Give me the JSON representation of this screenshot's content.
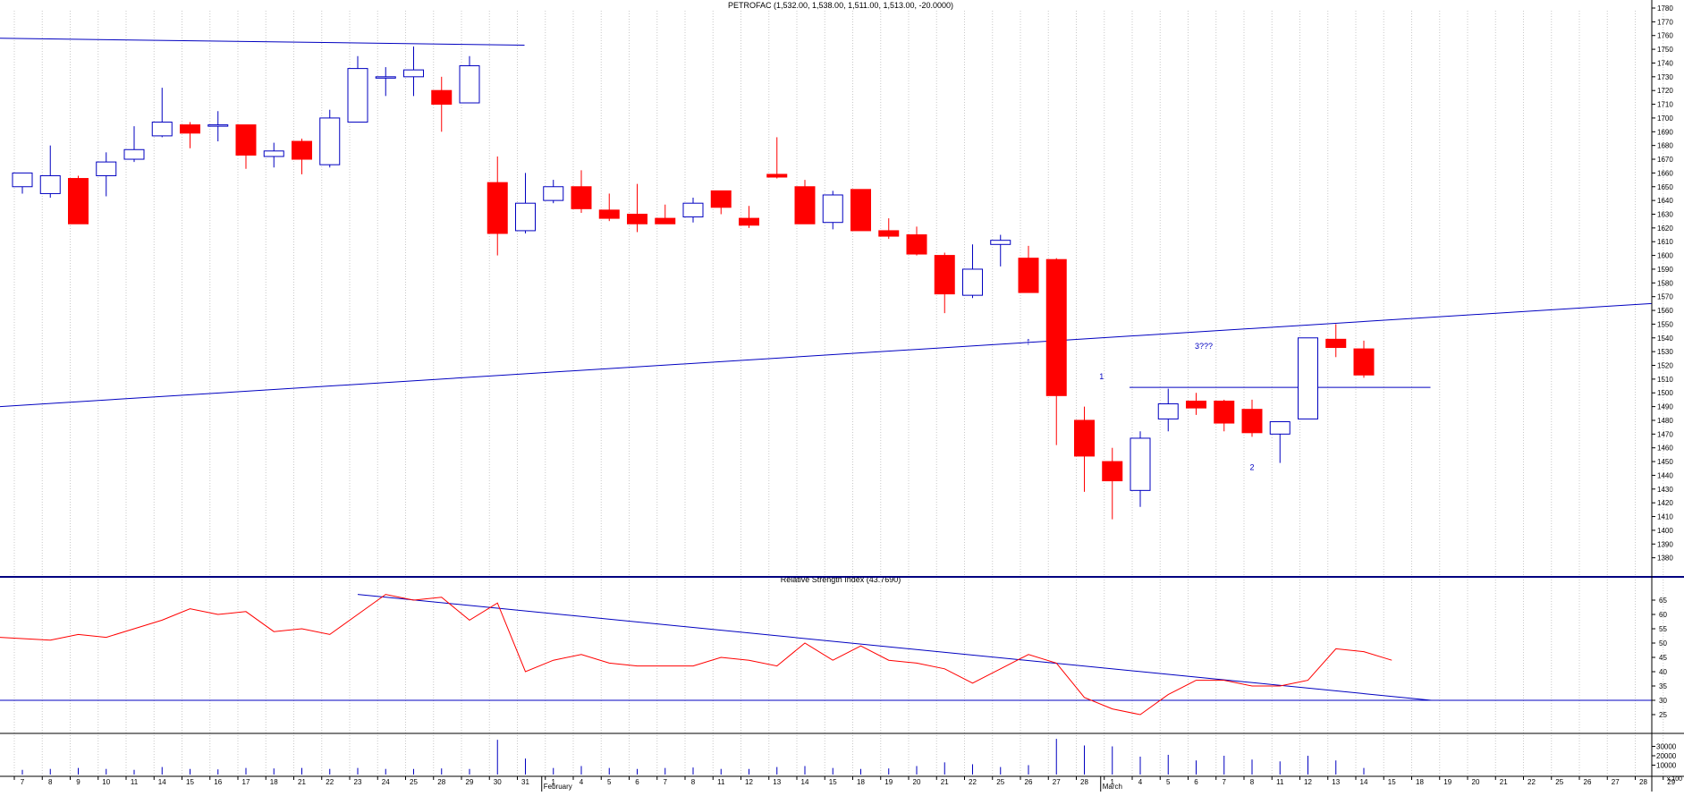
{
  "chart_data": [
    {
      "type": "candlestick",
      "title": "PETROFAC (1,532.00, 1,538.00, 1,511.00, 1,513.00, -20.0000)",
      "ylim": [
        1370,
        1780
      ],
      "y_ticks": [
        1380,
        1390,
        1400,
        1410,
        1420,
        1430,
        1440,
        1450,
        1460,
        1470,
        1480,
        1490,
        1500,
        1510,
        1520,
        1530,
        1540,
        1550,
        1560,
        1570,
        1580,
        1590,
        1600,
        1610,
        1620,
        1630,
        1640,
        1650,
        1660,
        1670,
        1680,
        1690,
        1700,
        1710,
        1720,
        1730,
        1740,
        1750,
        1760,
        1770,
        1780
      ],
      "x_labels": [
        "7",
        "8",
        "9",
        "10",
        "11",
        "14",
        "15",
        "16",
        "17",
        "18",
        "21",
        "22",
        "23",
        "24",
        "25",
        "28",
        "29",
        "30",
        "31",
        "1",
        "4",
        "5",
        "6",
        "7",
        "8",
        "11",
        "12",
        "13",
        "14",
        "15",
        "18",
        "19",
        "20",
        "21",
        "22",
        "25",
        "26",
        "27",
        "28",
        "1",
        "4",
        "5",
        "6",
        "7",
        "8",
        "11",
        "12",
        "13",
        "14",
        "15",
        "18",
        "19",
        "20",
        "21",
        "22",
        "25",
        "26",
        "27",
        "28",
        "29"
      ],
      "month_labels": [
        {
          "label": "February",
          "index": 19
        },
        {
          "label": "March",
          "index": 39
        }
      ],
      "candles": [
        {
          "x": "7",
          "open": 1650,
          "high": 1660,
          "low": 1645,
          "close": 1660
        },
        {
          "x": "8",
          "open": 1645,
          "high": 1680,
          "low": 1642,
          "close": 1658
        },
        {
          "x": "9",
          "open": 1656,
          "high": 1658,
          "low": 1623,
          "close": 1623
        },
        {
          "x": "10",
          "open": 1658,
          "high": 1675,
          "low": 1643,
          "close": 1668
        },
        {
          "x": "11",
          "open": 1670,
          "high": 1694,
          "low": 1668,
          "close": 1677
        },
        {
          "x": "14",
          "open": 1687,
          "high": 1722,
          "low": 1686,
          "close": 1697
        },
        {
          "x": "15",
          "open": 1695,
          "high": 1697,
          "low": 1678,
          "close": 1689
        },
        {
          "x": "16",
          "open": 1695,
          "high": 1705,
          "low": 1683,
          "close": 1695
        },
        {
          "x": "17",
          "open": 1695,
          "high": 1695,
          "low": 1663,
          "close": 1673
        },
        {
          "x": "18",
          "open": 1672,
          "high": 1682,
          "low": 1664,
          "close": 1676
        },
        {
          "x": "21",
          "open": 1683,
          "high": 1685,
          "low": 1659,
          "close": 1670
        },
        {
          "x": "22",
          "open": 1666,
          "high": 1706,
          "low": 1664,
          "close": 1700
        },
        {
          "x": "23",
          "open": 1697,
          "high": 1745,
          "low": 1697,
          "close": 1736
        },
        {
          "x": "24",
          "open": 1730,
          "high": 1737,
          "low": 1716,
          "close": 1730
        },
        {
          "x": "25",
          "open": 1730,
          "high": 1752,
          "low": 1716,
          "close": 1735
        },
        {
          "x": "28",
          "open": 1720,
          "high": 1730,
          "low": 1690,
          "close": 1710
        },
        {
          "x": "29",
          "open": 1711,
          "high": 1745,
          "low": 1711,
          "close": 1738
        },
        {
          "x": "30",
          "open": 1653,
          "high": 1672,
          "low": 1600,
          "close": 1616
        },
        {
          "x": "31",
          "open": 1618,
          "high": 1660,
          "low": 1616,
          "close": 1638
        },
        {
          "x": "1",
          "open": 1640,
          "high": 1655,
          "low": 1638,
          "close": 1650
        },
        {
          "x": "4",
          "open": 1650,
          "high": 1662,
          "low": 1631,
          "close": 1634
        },
        {
          "x": "5",
          "open": 1633,
          "high": 1645,
          "low": 1625,
          "close": 1627
        },
        {
          "x": "6",
          "open": 1630,
          "high": 1652,
          "low": 1617,
          "close": 1623
        },
        {
          "x": "7",
          "open": 1627,
          "high": 1637,
          "low": 1623,
          "close": 1623
        },
        {
          "x": "8",
          "open": 1628,
          "high": 1642,
          "low": 1624,
          "close": 1638
        },
        {
          "x": "11",
          "open": 1647,
          "high": 1647,
          "low": 1630,
          "close": 1635
        },
        {
          "x": "12",
          "open": 1627,
          "high": 1636,
          "low": 1620,
          "close": 1622
        },
        {
          "x": "13",
          "open": 1659,
          "high": 1686,
          "low": 1656,
          "close": 1657
        },
        {
          "x": "14",
          "open": 1650,
          "high": 1655,
          "low": 1623,
          "close": 1623
        },
        {
          "x": "15",
          "open": 1624,
          "high": 1647,
          "low": 1619,
          "close": 1644
        },
        {
          "x": "18",
          "open": 1648,
          "high": 1648,
          "low": 1618,
          "close": 1618
        },
        {
          "x": "19",
          "open": 1618,
          "high": 1627,
          "low": 1612,
          "close": 1614
        },
        {
          "x": "20",
          "open": 1615,
          "high": 1621,
          "low": 1600,
          "close": 1601
        },
        {
          "x": "21",
          "open": 1600,
          "high": 1602,
          "low": 1558,
          "close": 1572
        },
        {
          "x": "22",
          "open": 1571,
          "high": 1608,
          "low": 1569,
          "close": 1590
        },
        {
          "x": "25",
          "open": 1608,
          "high": 1615,
          "low": 1592,
          "close": 1611
        },
        {
          "x": "26",
          "open": 1598,
          "high": 1607,
          "low": 1573,
          "close": 1573
        },
        {
          "x": "27",
          "open": 1597,
          "high": 1598,
          "low": 1462,
          "close": 1498
        },
        {
          "x": "28",
          "open": 1480,
          "high": 1490,
          "low": 1428,
          "close": 1454
        },
        {
          "x": "1",
          "open": 1450,
          "high": 1460,
          "low": 1408,
          "close": 1436
        },
        {
          "x": "4",
          "open": 1429,
          "high": 1472,
          "low": 1417,
          "close": 1467
        },
        {
          "x": "5",
          "open": 1481,
          "high": 1503,
          "low": 1472,
          "close": 1492
        },
        {
          "x": "6",
          "open": 1494,
          "high": 1500,
          "low": 1484,
          "close": 1489
        },
        {
          "x": "7",
          "open": 1494,
          "high": 1495,
          "low": 1472,
          "close": 1478
        },
        {
          "x": "8",
          "open": 1488,
          "high": 1495,
          "low": 1468,
          "close": 1471
        },
        {
          "x": "11",
          "open": 1470,
          "high": 1479,
          "low": 1449,
          "close": 1479
        },
        {
          "x": "12",
          "open": 1481,
          "high": 1540,
          "low": 1481,
          "close": 1540
        },
        {
          "x": "13",
          "open": 1539,
          "high": 1550,
          "low": 1526,
          "close": 1533
        },
        {
          "x": "14",
          "open": 1532,
          "high": 1538,
          "low": 1511,
          "close": 1513
        }
      ],
      "trendlines": [
        {
          "x1": "7",
          "y1": 1490,
          "x2": "29",
          "y2": 1565,
          "color": "#0000c0"
        },
        {
          "x1": "7",
          "y1": 1758,
          "x2": "1",
          "y2": 1753,
          "color": "#0000c0"
        },
        {
          "x1": "1",
          "y1": 1504,
          "x2": "19",
          "y2": 1504,
          "color": "#0000c0"
        }
      ],
      "annotations": [
        {
          "text": "1",
          "x": "1",
          "y": 1510
        },
        {
          "text": "2",
          "x": "8",
          "y": 1444
        },
        {
          "text": "3???",
          "x": "8",
          "y": 1532
        },
        {
          "text": "↑",
          "x": "26",
          "y": 1535
        }
      ]
    },
    {
      "type": "line",
      "title": "Relative Strength Index (43.7690)",
      "ylim": [
        20,
        70
      ],
      "y_ticks": [
        25,
        30,
        35,
        40,
        45,
        50,
        55,
        60,
        65
      ],
      "series": [
        {
          "color": "#ff0000",
          "values": [
            52,
            51,
            53,
            52,
            55,
            58,
            62,
            60,
            61,
            54,
            55,
            53,
            60,
            67,
            65,
            66,
            58,
            64,
            40,
            44,
            46,
            43,
            42,
            42,
            42,
            45,
            44,
            42,
            50,
            44,
            49,
            44,
            43,
            41,
            36,
            41,
            46,
            43,
            31,
            27,
            25,
            32,
            37,
            37,
            35,
            35,
            37,
            48,
            47,
            44
          ]
        }
      ],
      "trendlines": [
        {
          "x1": "23",
          "y1": 67,
          "x2": "19",
          "y2": 30,
          "color": "#0000c0"
        },
        {
          "x1": "7",
          "y1": 30,
          "x2": "29",
          "y2": 30,
          "color": "#0000c0"
        }
      ]
    },
    {
      "type": "bar",
      "ylim": [
        0,
        40000
      ],
      "y_ticks": [
        10000,
        20000,
        30000
      ],
      "y_tick_labels": [
        "10000",
        "20000",
        "30000"
      ],
      "axis_unit_label": "x 100",
      "values": [
        5000,
        6000,
        7000,
        6000,
        5000,
        8000,
        6000,
        5500,
        7000,
        6500,
        7000,
        6000,
        7000,
        6000,
        6000,
        6500,
        6000,
        37000,
        17000,
        7000,
        9000,
        7000,
        6000,
        7000,
        7500,
        6000,
        6000,
        8000,
        9000,
        7000,
        6000,
        6500,
        9000,
        13000,
        11000,
        8000,
        10000,
        38000,
        31000,
        30000,
        19000,
        21000,
        15000,
        20000,
        16000,
        14000,
        20000,
        15000,
        7000
      ]
    }
  ]
}
